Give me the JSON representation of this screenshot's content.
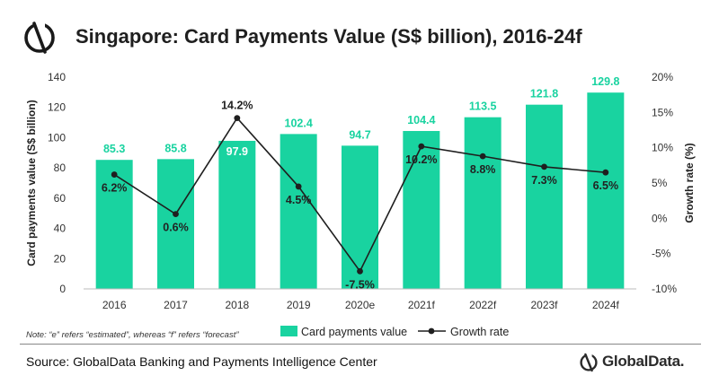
{
  "header": {
    "title": "Singapore: Card Payments Value (S$ billion), 2016-24f",
    "logo_icon": "globaldata-logo-icon"
  },
  "footer": {
    "note": "Note: “e” refers “estimated”, whereas “f” refers “forecast”",
    "source": "Source: GlobalData Banking and Payments Intelligence Center",
    "brand": "GlobalData."
  },
  "colors": {
    "bar": "#19d3a0",
    "line": "#1f1f1f",
    "bar_label": "#19d3a0",
    "axis_text": "#333333"
  },
  "chart_data": {
    "type": "bar",
    "title": "Singapore: Card Payments Value (S$ billion), 2016-24f",
    "categories": [
      "2016",
      "2017",
      "2018",
      "2019",
      "2020e",
      "2021f",
      "2022f",
      "2023f",
      "2024f"
    ],
    "series": [
      {
        "name": "Card payments value",
        "type": "bar",
        "axis": "left",
        "values": [
          85.3,
          85.8,
          97.9,
          102.4,
          94.7,
          104.4,
          113.5,
          121.8,
          129.8
        ],
        "labels": [
          "85.3",
          "85.8",
          "97.9",
          "102.4",
          "94.7",
          "104.4",
          "113.5",
          "121.8",
          "129.8"
        ]
      },
      {
        "name": "Growth rate",
        "type": "line",
        "axis": "right",
        "values": [
          6.2,
          0.6,
          14.2,
          4.5,
          -7.5,
          10.2,
          8.8,
          7.3,
          6.5
        ],
        "labels": [
          "6.2%",
          "0.6%",
          "14.2%",
          "4.5%",
          "-7.5%",
          "10.2%",
          "8.8%",
          "7.3%",
          "6.5%"
        ]
      }
    ],
    "ylabel": "Card payments value (S$ billion)",
    "y2label": "Growth rate (%)",
    "ylim": [
      0,
      140
    ],
    "y2lim": [
      -10,
      20
    ],
    "yticks": [
      "0",
      "20",
      "40",
      "60",
      "80",
      "100",
      "120",
      "140"
    ],
    "y2ticks": [
      "-10%",
      "-5%",
      "0%",
      "5%",
      "10%",
      "15%",
      "20%"
    ],
    "legend_position": "bottom",
    "grid": false
  }
}
